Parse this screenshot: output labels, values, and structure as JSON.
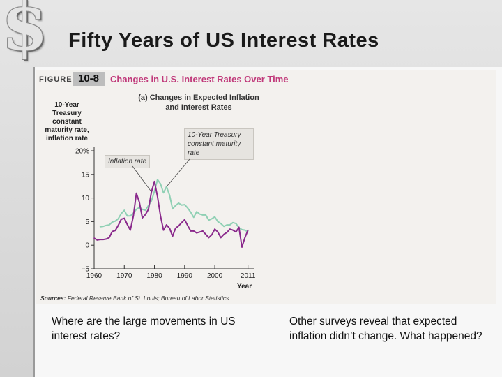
{
  "slide": {
    "title": "Fifty Years of US Interest Rates",
    "logo_icon": "dollar-sign-icon",
    "question_left": "Where are the large movements in US interest rates?",
    "question_right": "Other surveys reveal that expected inflation didn’t change. What happened?"
  },
  "figure": {
    "label": "FIGURE",
    "number": "10-8",
    "title": "Changes in U.S. Interest Rates Over Time",
    "panel_title": "(a) Changes in Expected Inflation and Interest Rates",
    "source_prefix": "Sources:",
    "source_text": "Federal Reserve Bank of St. Louis; Bureau of Labor Statistics."
  },
  "chart_data": {
    "type": "line",
    "title": "(a) Changes in Expected Inflation and Interest Rates",
    "xlabel": "Year",
    "ylabel": "10-Year Treasury constant maturity rate, inflation rate",
    "xlim": [
      1960,
      2012
    ],
    "ylim": [
      -5,
      20
    ],
    "x_ticks": [
      "1960",
      "1970",
      "1980",
      "1990",
      "2000",
      "2011"
    ],
    "x_tick_values": [
      1960,
      1970,
      1980,
      1990,
      2000,
      2011
    ],
    "y_ticks": [
      "−5",
      "0",
      "5",
      "10",
      "15",
      "20%"
    ],
    "y_tick_values": [
      -5,
      0,
      5,
      10,
      15,
      20
    ],
    "grid": false,
    "annotations": [
      {
        "text": "Inflation rate",
        "series": "inflation"
      },
      {
        "text": "10-Year Treasury constant maturity rate",
        "series": "treasury"
      }
    ],
    "series": [
      {
        "id": "treasury",
        "color": "#8fd0b4",
        "x": [
          1962,
          1963,
          1964,
          1965,
          1966,
          1967,
          1968,
          1969,
          1970,
          1971,
          1972,
          1973,
          1974,
          1975,
          1976,
          1977,
          1978,
          1979,
          1980,
          1981,
          1982,
          1983,
          1984,
          1985,
          1986,
          1987,
          1988,
          1989,
          1990,
          1991,
          1992,
          1993,
          1994,
          1995,
          1996,
          1997,
          1998,
          1999,
          2000,
          2001,
          2002,
          2003,
          2004,
          2005,
          2006,
          2007,
          2008,
          2009,
          2010,
          2011
        ],
        "y": [
          3.9,
          4.0,
          4.2,
          4.3,
          4.9,
          5.1,
          5.6,
          6.7,
          7.4,
          6.2,
          6.2,
          6.8,
          7.6,
          8.0,
          7.6,
          7.4,
          8.4,
          9.4,
          11.4,
          13.9,
          13.0,
          11.1,
          12.4,
          10.6,
          7.7,
          8.4,
          8.9,
          8.5,
          8.6,
          7.9,
          7.0,
          5.9,
          7.1,
          6.6,
          6.4,
          6.4,
          5.3,
          5.6,
          6.0,
          5.0,
          4.6,
          4.0,
          4.3,
          4.3,
          4.8,
          4.6,
          3.7,
          3.3,
          3.2,
          2.8
        ]
      },
      {
        "id": "inflation",
        "color": "#8a2a8c",
        "x": [
          1960,
          1961,
          1962,
          1963,
          1964,
          1965,
          1966,
          1967,
          1968,
          1969,
          1970,
          1971,
          1972,
          1973,
          1974,
          1975,
          1976,
          1977,
          1978,
          1979,
          1980,
          1981,
          1982,
          1983,
          1984,
          1985,
          1986,
          1987,
          1988,
          1989,
          1990,
          1991,
          1992,
          1993,
          1994,
          1995,
          1996,
          1997,
          1998,
          1999,
          2000,
          2001,
          2002,
          2003,
          2004,
          2005,
          2006,
          2007,
          2008,
          2009,
          2010,
          2011
        ],
        "y": [
          1.5,
          1.1,
          1.2,
          1.2,
          1.3,
          1.6,
          2.9,
          3.1,
          4.2,
          5.5,
          5.7,
          4.4,
          3.2,
          6.2,
          11.0,
          9.1,
          5.8,
          6.5,
          7.6,
          11.3,
          13.5,
          10.3,
          6.2,
          3.2,
          4.3,
          3.6,
          1.9,
          3.6,
          4.1,
          4.8,
          5.4,
          4.2,
          3.0,
          3.0,
          2.6,
          2.8,
          3.0,
          2.3,
          1.6,
          2.2,
          3.4,
          2.8,
          1.6,
          2.3,
          2.7,
          3.4,
          3.2,
          2.8,
          3.8,
          -0.4,
          1.6,
          3.2
        ]
      }
    ]
  }
}
